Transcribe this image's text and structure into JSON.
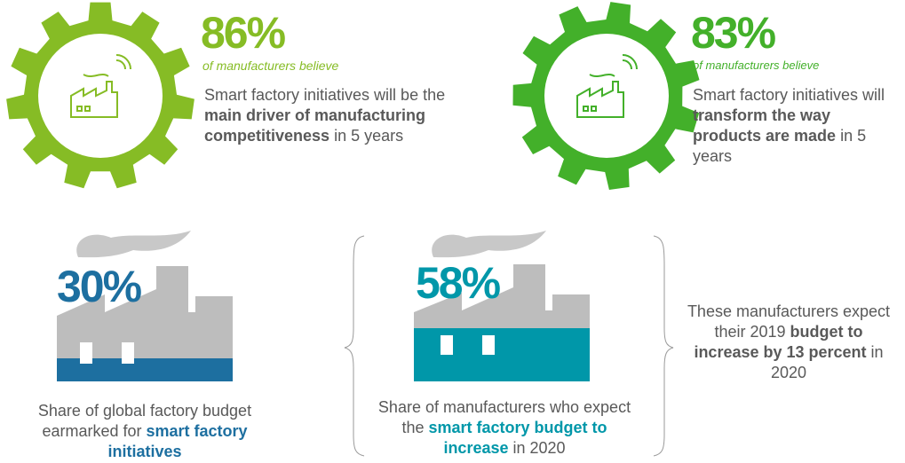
{
  "top_stats": [
    {
      "value": "86%",
      "subtitle": "of manufacturers believe",
      "color": "#86bc25",
      "text": [
        {
          "text": "Smart factory initiatives will be the ",
          "bold": false
        },
        {
          "text": "main driver of manufacturing competitiveness",
          "bold": true
        },
        {
          "text": " in 5 years",
          "bold": false
        }
      ]
    },
    {
      "value": "83%",
      "subtitle": "of manufacturers believe",
      "color": "#43b02a",
      "text": [
        {
          "text": "Smart factory initiatives will ",
          "bold": false
        },
        {
          "text": "transform the way products are made",
          "bold": true
        },
        {
          "text": " in 5 years",
          "bold": false
        }
      ]
    }
  ],
  "bottom_stats": [
    {
      "value": "30%",
      "color": "#1d6fa0",
      "text": [
        {
          "text": "Share of global factory budget earmarked for ",
          "bold": false
        },
        {
          "text": "smart factory initiatives",
          "bold": true
        }
      ]
    },
    {
      "value": "58%",
      "color": "#0097a9",
      "text": [
        {
          "text": "Share of manufacturers who expect the ",
          "bold": false
        },
        {
          "text": "smart factory budget to increase",
          "bold": true
        },
        {
          "text": " in 2020",
          "bold": false
        }
      ]
    }
  ],
  "note": {
    "text": [
      {
        "text": "These manufacturers expect their 2019 ",
        "bold": false
      },
      {
        "text": "budget to increase by 13 percent",
        "bold": true
      },
      {
        "text": " in 2020",
        "bold": false
      }
    ]
  }
}
